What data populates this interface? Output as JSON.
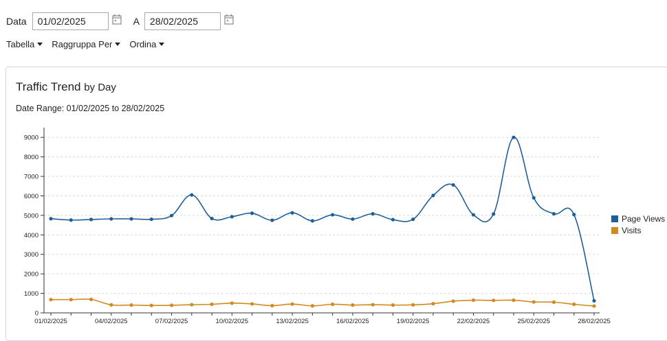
{
  "filters": {
    "date_label": "Data",
    "from_value": "01/02/2025",
    "to_label": "A",
    "to_value": "28/02/2025"
  },
  "menu": {
    "table": "Tabella",
    "group_by": "Raggruppa Per",
    "sort": "Ordina"
  },
  "chart_data": {
    "type": "line",
    "title": "Traffic Trend",
    "title_suffix": "by Day",
    "subtitle": "Date Range: 01/02/2025 to 28/02/2025",
    "x": [
      "01/02/2025",
      "02/02/2025",
      "03/02/2025",
      "04/02/2025",
      "05/02/2025",
      "06/02/2025",
      "07/02/2025",
      "08/02/2025",
      "09/02/2025",
      "10/02/2025",
      "11/02/2025",
      "12/02/2025",
      "13/02/2025",
      "14/02/2025",
      "15/02/2025",
      "16/02/2025",
      "17/02/2025",
      "18/02/2025",
      "19/02/2025",
      "20/02/2025",
      "21/02/2025",
      "22/02/2025",
      "23/02/2025",
      "24/02/2025",
      "25/02/2025",
      "26/02/2025",
      "27/02/2025",
      "28/02/2025"
    ],
    "xticks": [
      "01/02/2025",
      "04/02/2025",
      "07/02/2025",
      "10/02/2025",
      "13/02/2025",
      "16/02/2025",
      "19/02/2025",
      "22/02/2025",
      "25/02/2025",
      "28/02/2025"
    ],
    "ylim": [
      0,
      9500
    ],
    "yticks": [
      "0",
      "1000",
      "2000",
      "3000",
      "4000",
      "5000",
      "6000",
      "7000",
      "8000",
      "9000"
    ],
    "grid": true,
    "legend_position": "right",
    "series": [
      {
        "name": "Page Views",
        "color": "#1f5f99",
        "values": [
          4830,
          4760,
          4790,
          4820,
          4820,
          4800,
          4990,
          6050,
          4840,
          4930,
          5110,
          4750,
          5130,
          4720,
          5030,
          4810,
          5080,
          4780,
          4800,
          6020,
          6560,
          5030,
          5070,
          9000,
          5900,
          5080,
          5040,
          620
        ]
      },
      {
        "name": "Visits",
        "color": "#d08a1e",
        "values": [
          680,
          680,
          690,
          410,
          400,
          380,
          390,
          420,
          440,
          500,
          460,
          370,
          450,
          360,
          440,
          400,
          420,
          400,
          410,
          470,
          600,
          650,
          640,
          650,
          560,
          550,
          440,
          350
        ]
      }
    ]
  }
}
